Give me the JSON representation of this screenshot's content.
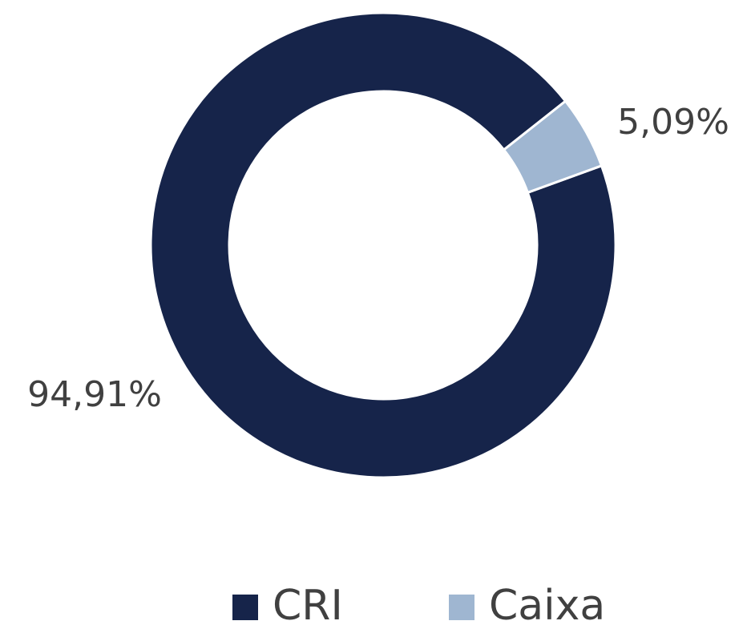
{
  "chart_data": {
    "type": "donut",
    "categories": [
      "CRI",
      "Caixa"
    ],
    "values": [
      94.91,
      5.09
    ],
    "value_labels": [
      "94,91%",
      "5,09%"
    ],
    "colors": [
      "#16244a",
      "#9fb6d1"
    ],
    "legend": "bottom"
  }
}
